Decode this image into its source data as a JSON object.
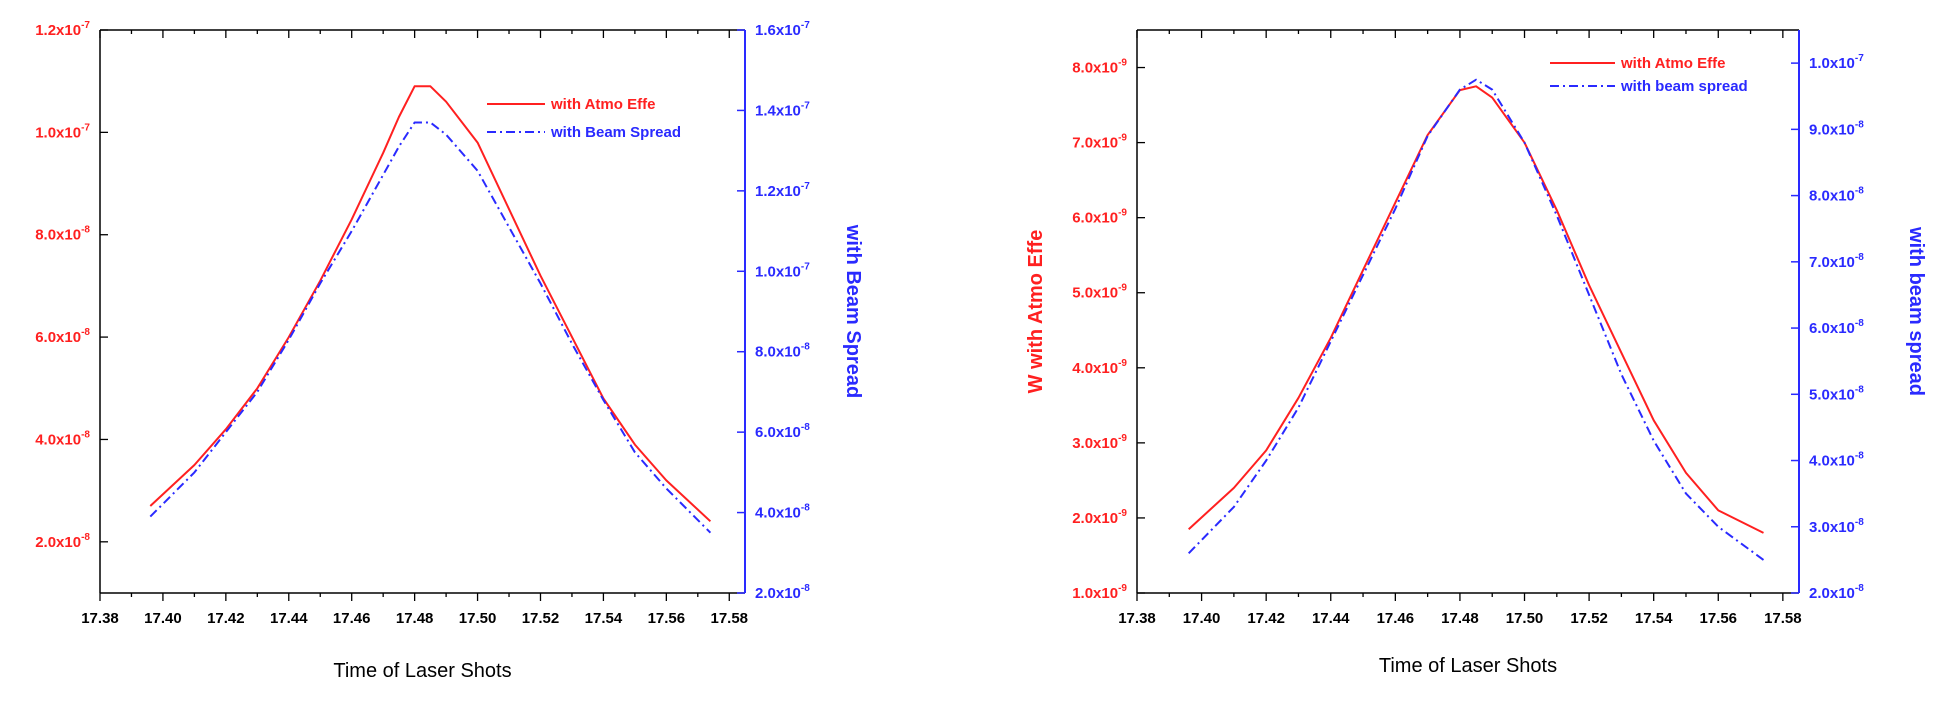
{
  "chart_data": [
    {
      "type": "line",
      "title": "",
      "xlabel": "Time of Laser  Shots",
      "ylabel": "",
      "y2label": "with Beam Spread",
      "xlim": [
        17.38,
        17.585
      ],
      "ylim": [
        1e-08,
        1.2e-07
      ],
      "y2lim": [
        2e-08,
        1.6e-07
      ],
      "grid": false,
      "legend_position": "top-right",
      "x_ticks": [
        "17.38",
        "17.40",
        "17.42",
        "17.44",
        "17.46",
        "17.48",
        "17.50",
        "17.52",
        "17.54",
        "17.56",
        "17.58"
      ],
      "x_tick_values": [
        17.38,
        17.4,
        17.42,
        17.44,
        17.46,
        17.48,
        17.5,
        17.52,
        17.54,
        17.56,
        17.58
      ],
      "y_ticks": [
        {
          "value": 2e-08,
          "mantissa": "2.0x10",
          "exp": "-8"
        },
        {
          "value": 4e-08,
          "mantissa": "4.0x10",
          "exp": "-8"
        },
        {
          "value": 6e-08,
          "mantissa": "6.0x10",
          "exp": "-8"
        },
        {
          "value": 8e-08,
          "mantissa": "8.0x10",
          "exp": "-8"
        },
        {
          "value": 1e-07,
          "mantissa": "1.0x10",
          "exp": "-7"
        },
        {
          "value": 1.2e-07,
          "mantissa": "1.2x10",
          "exp": "-7"
        }
      ],
      "y2_ticks": [
        {
          "value": 2e-08,
          "mantissa": "2.0x10",
          "exp": "-8"
        },
        {
          "value": 4e-08,
          "mantissa": "4.0x10",
          "exp": "-8"
        },
        {
          "value": 6e-08,
          "mantissa": "6.0x10",
          "exp": "-8"
        },
        {
          "value": 8e-08,
          "mantissa": "8.0x10",
          "exp": "-8"
        },
        {
          "value": 1e-07,
          "mantissa": "1.0x10",
          "exp": "-7"
        },
        {
          "value": 1.2e-07,
          "mantissa": "1.2x10",
          "exp": "-7"
        },
        {
          "value": 1.4e-07,
          "mantissa": "1.4x10",
          "exp": "-7"
        },
        {
          "value": 1.6e-07,
          "mantissa": "1.6x10",
          "exp": "-7"
        }
      ],
      "series": [
        {
          "name": "with Atmo Effe",
          "axis": "left",
          "color": "#ff2020",
          "dash": "solid",
          "x": [
            17.396,
            17.41,
            17.42,
            17.43,
            17.44,
            17.45,
            17.46,
            17.47,
            17.475,
            17.48,
            17.485,
            17.49,
            17.5,
            17.51,
            17.52,
            17.53,
            17.54,
            17.55,
            17.56,
            17.574
          ],
          "y": [
            2.7e-08,
            3.5e-08,
            4.2e-08,
            5e-08,
            6e-08,
            7.1e-08,
            8.3e-08,
            9.6e-08,
            1.03e-07,
            1.09e-07,
            1.09e-07,
            1.06e-07,
            9.8e-08,
            8.5e-08,
            7.2e-08,
            6e-08,
            4.8e-08,
            3.9e-08,
            3.2e-08,
            2.4e-08
          ]
        },
        {
          "name": "with Beam Spread",
          "axis": "right",
          "color": "#2a2aff",
          "dash": "dashdot",
          "x": [
            17.396,
            17.41,
            17.42,
            17.43,
            17.44,
            17.45,
            17.46,
            17.47,
            17.475,
            17.48,
            17.485,
            17.49,
            17.5,
            17.51,
            17.52,
            17.53,
            17.54,
            17.55,
            17.56,
            17.574
          ],
          "y": [
            3.9e-08,
            5e-08,
            6e-08,
            7e-08,
            8.3e-08,
            9.7e-08,
            1.1e-07,
            1.24e-07,
            1.31e-07,
            1.37e-07,
            1.37e-07,
            1.34e-07,
            1.25e-07,
            1.11e-07,
            9.7e-08,
            8.2e-08,
            6.8e-08,
            5.5e-08,
            4.6e-08,
            3.5e-08
          ]
        }
      ]
    },
    {
      "type": "line",
      "title": "",
      "xlabel": "Time of Laser Shots",
      "ylabel": "W with Atmo Effe",
      "y2label": "with beam spread",
      "xlim": [
        17.38,
        17.585
      ],
      "ylim": [
        1e-09,
        8.5e-09
      ],
      "y2lim": [
        2e-08,
        1.05e-07
      ],
      "grid": false,
      "legend_position": "top-right",
      "x_ticks": [
        "17.38",
        "17.40",
        "17.42",
        "17.44",
        "17.46",
        "17.48",
        "17.50",
        "17.52",
        "17.54",
        "17.56",
        "17.58"
      ],
      "x_tick_values": [
        17.38,
        17.4,
        17.42,
        17.44,
        17.46,
        17.48,
        17.5,
        17.52,
        17.54,
        17.56,
        17.58
      ],
      "y_ticks": [
        {
          "value": 1e-09,
          "mantissa": "1.0x10",
          "exp": "-9"
        },
        {
          "value": 2e-09,
          "mantissa": "2.0x10",
          "exp": "-9"
        },
        {
          "value": 3e-09,
          "mantissa": "3.0x10",
          "exp": "-9"
        },
        {
          "value": 4e-09,
          "mantissa": "4.0x10",
          "exp": "-9"
        },
        {
          "value": 5e-09,
          "mantissa": "5.0x10",
          "exp": "-9"
        },
        {
          "value": 6e-09,
          "mantissa": "6.0x10",
          "exp": "-9"
        },
        {
          "value": 7e-09,
          "mantissa": "7.0x10",
          "exp": "-9"
        },
        {
          "value": 8e-09,
          "mantissa": "8.0x10",
          "exp": "-9"
        }
      ],
      "y2_ticks": [
        {
          "value": 2e-08,
          "mantissa": "2.0x10",
          "exp": "-8"
        },
        {
          "value": 3e-08,
          "mantissa": "3.0x10",
          "exp": "-8"
        },
        {
          "value": 4e-08,
          "mantissa": "4.0x10",
          "exp": "-8"
        },
        {
          "value": 5e-08,
          "mantissa": "5.0x10",
          "exp": "-8"
        },
        {
          "value": 6e-08,
          "mantissa": "6.0x10",
          "exp": "-8"
        },
        {
          "value": 7e-08,
          "mantissa": "7.0x10",
          "exp": "-8"
        },
        {
          "value": 8e-08,
          "mantissa": "8.0x10",
          "exp": "-8"
        },
        {
          "value": 9e-08,
          "mantissa": "9.0x10",
          "exp": "-8"
        },
        {
          "value": 1e-07,
          "mantissa": "1.0x10",
          "exp": "-7"
        }
      ],
      "series": [
        {
          "name": "with Atmo Effe",
          "axis": "left",
          "color": "#ff2020",
          "dash": "solid",
          "x": [
            17.396,
            17.41,
            17.42,
            17.43,
            17.44,
            17.45,
            17.46,
            17.47,
            17.48,
            17.485,
            17.49,
            17.5,
            17.51,
            17.52,
            17.53,
            17.54,
            17.55,
            17.56,
            17.574
          ],
          "y": [
            1.85e-09,
            2.4e-09,
            2.9e-09,
            3.6e-09,
            4.4e-09,
            5.3e-09,
            6.2e-09,
            7.1e-09,
            7.7e-09,
            7.75e-09,
            7.6e-09,
            7e-09,
            6.1e-09,
            5.1e-09,
            4.2e-09,
            3.3e-09,
            2.6e-09,
            2.1e-09,
            1.8e-09
          ]
        },
        {
          "name": "with beam spread",
          "axis": "right",
          "color": "#2a2aff",
          "dash": "dashdot",
          "x": [
            17.396,
            17.41,
            17.42,
            17.43,
            17.44,
            17.45,
            17.46,
            17.47,
            17.48,
            17.485,
            17.49,
            17.5,
            17.51,
            17.52,
            17.53,
            17.54,
            17.55,
            17.56,
            17.574
          ],
          "y": [
            2.6e-08,
            3.3e-08,
            4e-08,
            4.8e-08,
            5.8e-08,
            6.8e-08,
            7.8e-08,
            8.9e-08,
            9.6e-08,
            9.75e-08,
            9.6e-08,
            8.8e-08,
            7.7e-08,
            6.5e-08,
            5.3e-08,
            4.3e-08,
            3.5e-08,
            3e-08,
            2.5e-08
          ]
        }
      ]
    }
  ]
}
